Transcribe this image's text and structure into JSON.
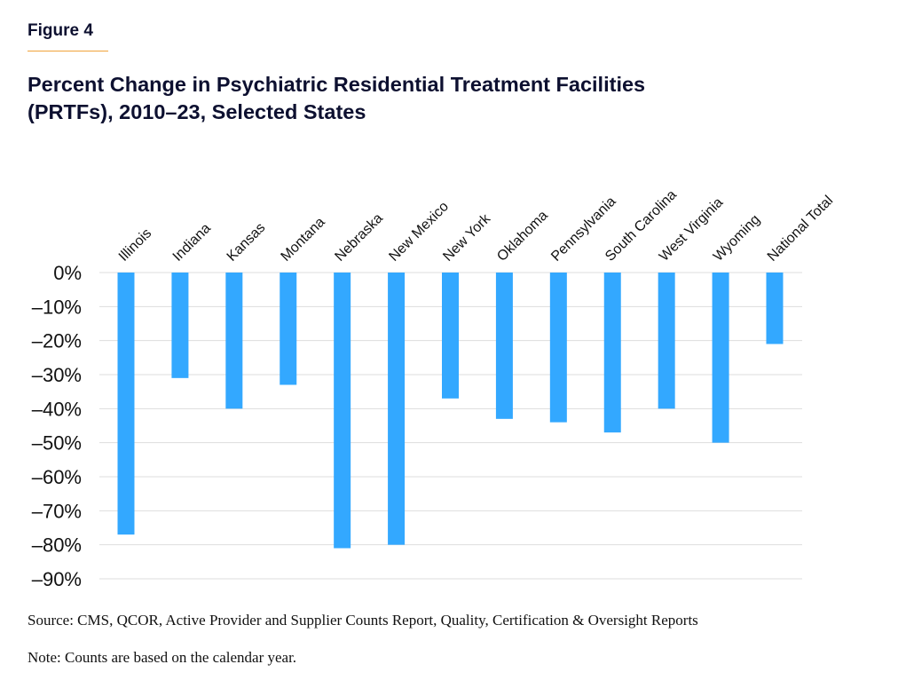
{
  "figure_label": "Figure 4",
  "colors": {
    "bar": "#33a8ff",
    "accent_rule": "#f0a23a",
    "title": "#0d1030",
    "gridline": "#dddddd"
  },
  "chart_data": {
    "type": "bar",
    "title": "Percent Change in Psychiatric Residential Treatment Facilities (PRTFs), 2010–23, Selected States",
    "title_lines": [
      "Percent Change in Psychiatric Residential Treatment Facilities",
      "(PRTFs), 2010–23, Selected States"
    ],
    "xlabel": "",
    "ylabel": "",
    "categories": [
      "Illinois",
      "Indiana",
      "Kansas",
      "Montana",
      "Nebraska",
      "New Mexico",
      "New York",
      "Oklahoma",
      "Pennsylvania",
      "South Carolina",
      "West Virginia",
      "Wyoming",
      "National Total"
    ],
    "values": [
      -77,
      -31,
      -40,
      -33,
      -81,
      -80,
      -37,
      -43,
      -44,
      -47,
      -40,
      -50,
      -21
    ],
    "unit": "%",
    "ylim": [
      -90,
      0
    ],
    "yticks": [
      0,
      -10,
      -20,
      -30,
      -40,
      -50,
      -60,
      -70,
      -80,
      -90
    ],
    "ytick_labels": [
      "0%",
      "–10%",
      "–20%",
      "–30%",
      "–40%",
      "–50%",
      "–60%",
      "–70%",
      "–80%",
      "–90%"
    ],
    "x_tick_position": "top",
    "x_tick_rotation": "diagonal",
    "grid": true,
    "legend": "none"
  },
  "source": "Source: CMS, QCOR, Active Provider and Supplier Counts Report, Quality, Certification & Oversight Reports",
  "note": "Note: Counts are based on the calendar year."
}
